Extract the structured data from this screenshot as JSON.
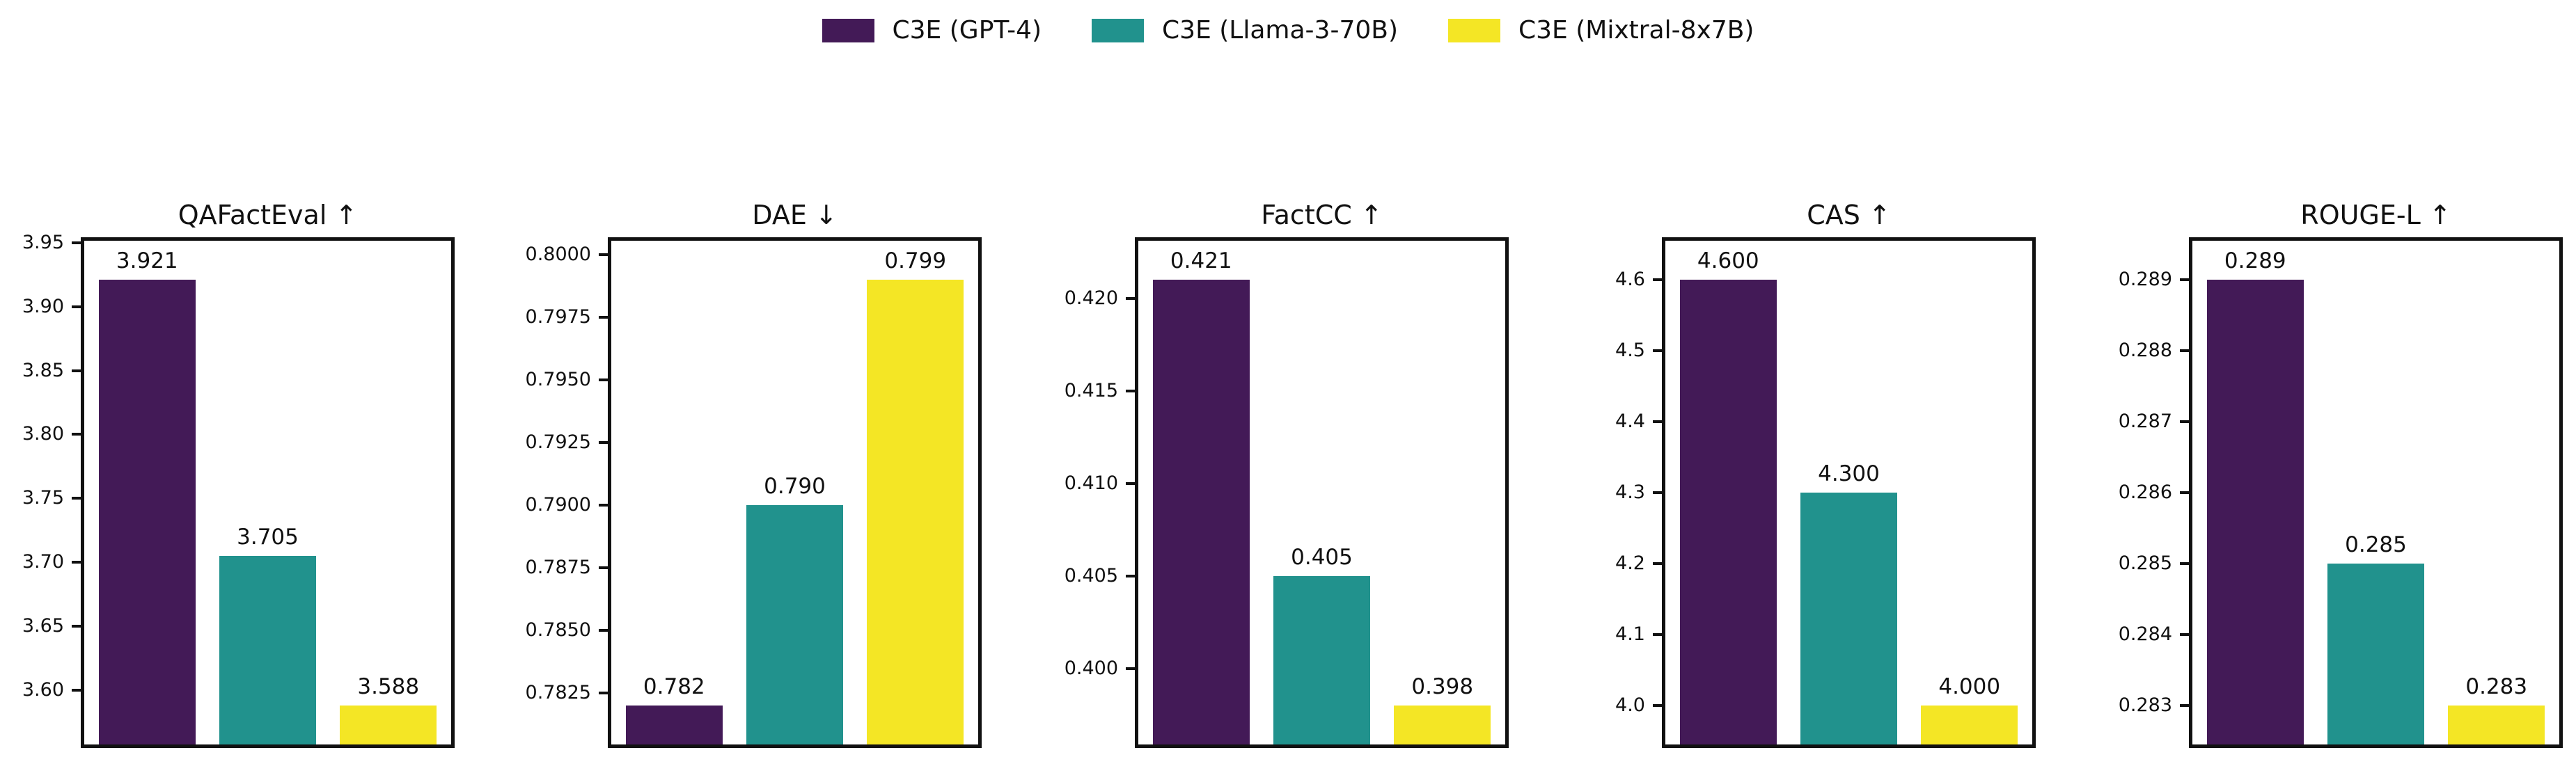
{
  "figure": {
    "background": "#ffffff"
  },
  "legend": {
    "position": "top-center",
    "items": [
      {
        "label": "C3E (GPT-4)",
        "color": "#431a57"
      },
      {
        "label": "C3E (Llama-3-70B)",
        "color": "#21928d"
      },
      {
        "label": "C3E (Mixtral-8x7B)",
        "color": "#f4e625"
      }
    ]
  },
  "colors": {
    "bar_colors": [
      "#431a57",
      "#21928d",
      "#f4e625"
    ],
    "text": "#111111",
    "spine": "#111111"
  },
  "chart_data": [
    {
      "type": "bar",
      "title": "QAFactEval ↑",
      "direction": "higher-is-better",
      "categories": [
        "C3E (GPT-4)",
        "C3E (Llama-3-70B)",
        "C3E (Mixtral-8x7B)"
      ],
      "values": [
        3.921,
        3.705,
        3.588
      ],
      "bar_labels": [
        "3.921",
        "3.705",
        "3.588"
      ],
      "ylim": [
        3.5547,
        3.9543
      ],
      "ytick_values": [
        3.6,
        3.65,
        3.7,
        3.75,
        3.8,
        3.85,
        3.9,
        3.95
      ],
      "ytick_labels": [
        "3.60",
        "3.65",
        "3.70",
        "3.75",
        "3.80",
        "3.85",
        "3.90",
        "3.95"
      ],
      "grid": false
    },
    {
      "type": "bar",
      "title": "DAE ↓",
      "direction": "lower-is-better",
      "categories": [
        "C3E (GPT-4)",
        "C3E (Llama-3-70B)",
        "C3E (Mixtral-8x7B)"
      ],
      "values": [
        0.782,
        0.79,
        0.799
      ],
      "bar_labels": [
        "0.782",
        "0.790",
        "0.799"
      ],
      "ylim": [
        0.7803,
        0.8007
      ],
      "ytick_values": [
        0.7825,
        0.785,
        0.7875,
        0.79,
        0.7925,
        0.795,
        0.7975,
        0.8
      ],
      "ytick_labels": [
        "0.7825",
        "0.7850",
        "0.7875",
        "0.7900",
        "0.7925",
        "0.7950",
        "0.7975",
        "0.8000"
      ],
      "grid": false
    },
    {
      "type": "bar",
      "title": "FactCC ↑",
      "direction": "higher-is-better",
      "categories": [
        "C3E (GPT-4)",
        "C3E (Llama-3-70B)",
        "C3E (Mixtral-8x7B)"
      ],
      "values": [
        0.421,
        0.405,
        0.398
      ],
      "bar_labels": [
        "0.421",
        "0.405",
        "0.398"
      ],
      "ylim": [
        0.3957,
        0.4233
      ],
      "ytick_values": [
        0.4,
        0.405,
        0.41,
        0.415,
        0.42
      ],
      "ytick_labels": [
        "0.400",
        "0.405",
        "0.410",
        "0.415",
        "0.420"
      ],
      "grid": false
    },
    {
      "type": "bar",
      "title": "CAS ↑",
      "direction": "higher-is-better",
      "categories": [
        "C3E (GPT-4)",
        "C3E (Llama-3-70B)",
        "C3E (Mixtral-8x7B)"
      ],
      "values": [
        4.6,
        4.3,
        4.0
      ],
      "bar_labels": [
        "4.600",
        "4.300",
        "4.000"
      ],
      "ylim": [
        3.94,
        4.66
      ],
      "ytick_values": [
        4.0,
        4.1,
        4.2,
        4.3,
        4.4,
        4.5,
        4.6
      ],
      "ytick_labels": [
        "4.0",
        "4.1",
        "4.2",
        "4.3",
        "4.4",
        "4.5",
        "4.6"
      ],
      "grid": false
    },
    {
      "type": "bar",
      "title": "ROUGE-L ↑",
      "direction": "higher-is-better",
      "categories": [
        "C3E (GPT-4)",
        "C3E (Llama-3-70B)",
        "C3E (Mixtral-8x7B)"
      ],
      "values": [
        0.289,
        0.285,
        0.283
      ],
      "bar_labels": [
        "0.289",
        "0.285",
        "0.283"
      ],
      "ylim": [
        0.2824,
        0.2896
      ],
      "ytick_values": [
        0.283,
        0.284,
        0.285,
        0.286,
        0.287,
        0.288,
        0.289
      ],
      "ytick_labels": [
        "0.283",
        "0.284",
        "0.285",
        "0.286",
        "0.287",
        "0.288",
        "0.289"
      ],
      "grid": false
    }
  ]
}
